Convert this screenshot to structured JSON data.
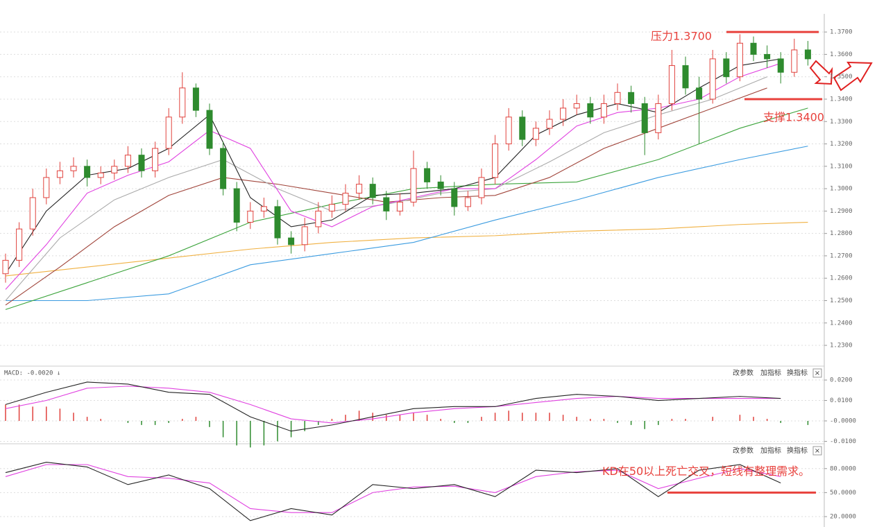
{
  "chart_data": [
    {
      "type": "candlestick",
      "up_color": "#e0413c",
      "down_color": "#2e8b2e",
      "open": [
        1.262,
        1.268,
        1.282,
        1.296,
        1.305,
        1.308,
        1.31,
        1.305,
        1.307,
        1.31,
        1.315,
        1.308,
        1.318,
        1.332,
        1.345,
        1.335,
        1.318,
        1.3,
        1.285,
        1.29,
        1.292,
        1.278,
        1.275,
        1.283,
        1.29,
        1.293,
        1.298,
        1.302,
        1.296,
        1.29,
        1.294,
        1.309,
        1.303,
        1.3,
        1.292,
        1.296,
        1.305,
        1.32,
        1.332,
        1.322,
        1.327,
        1.331,
        1.336,
        1.338,
        1.332,
        1.338,
        1.343,
        1.338,
        1.325,
        1.338,
        1.355,
        1.345,
        1.34,
        1.358,
        1.35,
        1.365,
        1.36,
        1.358,
        1.352,
        1.362
      ],
      "high": [
        1.271,
        1.285,
        1.3,
        1.309,
        1.312,
        1.314,
        1.313,
        1.31,
        1.313,
        1.319,
        1.318,
        1.321,
        1.336,
        1.352,
        1.347,
        1.338,
        1.321,
        1.303,
        1.294,
        1.296,
        1.295,
        1.281,
        1.287,
        1.294,
        1.297,
        1.302,
        1.306,
        1.305,
        1.299,
        1.298,
        1.317,
        1.312,
        1.306,
        1.303,
        1.299,
        1.309,
        1.324,
        1.336,
        1.335,
        1.33,
        1.335,
        1.34,
        1.342,
        1.341,
        1.342,
        1.347,
        1.346,
        1.341,
        1.342,
        1.362,
        1.359,
        1.35,
        1.362,
        1.361,
        1.369,
        1.368,
        1.364,
        1.361,
        1.367,
        1.366
      ],
      "low": [
        1.258,
        1.265,
        1.279,
        1.293,
        1.302,
        1.305,
        1.301,
        1.302,
        1.304,
        1.307,
        1.305,
        1.305,
        1.315,
        1.329,
        1.332,
        1.315,
        1.297,
        1.281,
        1.282,
        1.287,
        1.275,
        1.271,
        1.272,
        1.28,
        1.287,
        1.29,
        1.295,
        1.293,
        1.286,
        1.288,
        1.292,
        1.3,
        1.297,
        1.288,
        1.29,
        1.293,
        1.302,
        1.317,
        1.319,
        1.319,
        1.324,
        1.328,
        1.333,
        1.329,
        1.329,
        1.335,
        1.334,
        1.315,
        1.322,
        1.335,
        1.342,
        1.32,
        1.338,
        1.347,
        1.348,
        1.357,
        1.354,
        1.347,
        1.35,
        1.355
      ],
      "close": [
        1.268,
        1.282,
        1.296,
        1.305,
        1.308,
        1.31,
        1.305,
        1.307,
        1.31,
        1.315,
        1.308,
        1.318,
        1.332,
        1.345,
        1.335,
        1.318,
        1.3,
        1.285,
        1.29,
        1.292,
        1.278,
        1.275,
        1.283,
        1.29,
        1.293,
        1.298,
        1.302,
        1.296,
        1.29,
        1.294,
        1.309,
        1.303,
        1.3,
        1.292,
        1.296,
        1.305,
        1.32,
        1.332,
        1.322,
        1.327,
        1.331,
        1.336,
        1.338,
        1.332,
        1.338,
        1.343,
        1.338,
        1.325,
        1.338,
        1.355,
        1.345,
        1.34,
        1.358,
        1.35,
        1.365,
        1.36,
        1.358,
        1.352,
        1.362,
        1.358
      ],
      "lines": [
        {
          "color": "#f0b040",
          "x": [
            0,
            6,
            12,
            18,
            24,
            30,
            36,
            42,
            48,
            54,
            59
          ],
          "values": [
            1.261,
            1.265,
            1.269,
            1.273,
            1.276,
            1.278,
            1.279,
            1.281,
            1.282,
            1.284,
            1.285
          ]
        },
        {
          "color": "#3a9be0",
          "x": [
            0,
            6,
            12,
            18,
            24,
            30,
            36,
            42,
            48,
            54,
            59
          ],
          "values": [
            1.25,
            1.25,
            1.253,
            1.266,
            1.271,
            1.276,
            1.286,
            1.295,
            1.305,
            1.313,
            1.319
          ]
        },
        {
          "color": "#3aa33a",
          "x": [
            0,
            6,
            12,
            18,
            24,
            30,
            36,
            42,
            48,
            54,
            59
          ],
          "values": [
            1.246,
            1.258,
            1.27,
            1.285,
            1.293,
            1.3,
            1.302,
            1.303,
            1.313,
            1.327,
            1.336
          ]
        },
        {
          "color": "#a0443a",
          "x": [
            0,
            4,
            8,
            12,
            16,
            20,
            24,
            28,
            32,
            36,
            40,
            44,
            48,
            52,
            56
          ],
          "values": [
            1.248,
            1.265,
            1.283,
            1.297,
            1.305,
            1.302,
            1.298,
            1.294,
            1.296,
            1.297,
            1.305,
            1.318,
            1.327,
            1.336,
            1.345
          ]
        },
        {
          "color": "#aaaaaa",
          "x": [
            0,
            4,
            8,
            12,
            16,
            20,
            24,
            28,
            32,
            36,
            40,
            44,
            48,
            52,
            56
          ],
          "values": [
            1.25,
            1.278,
            1.295,
            1.305,
            1.313,
            1.3,
            1.29,
            1.293,
            1.298,
            1.3,
            1.312,
            1.325,
            1.333,
            1.34,
            1.35
          ]
        },
        {
          "color": "#e040e0",
          "x": [
            0,
            3,
            6,
            9,
            12,
            15,
            18,
            21,
            24,
            27,
            30,
            33,
            36,
            39,
            42,
            45,
            48,
            51,
            54,
            57
          ],
          "values": [
            1.255,
            1.275,
            1.298,
            1.306,
            1.312,
            1.326,
            1.318,
            1.29,
            1.283,
            1.292,
            1.296,
            1.3,
            1.3,
            1.313,
            1.328,
            1.334,
            1.336,
            1.34,
            1.35,
            1.356
          ]
        },
        {
          "color": "#222222",
          "x": [
            0,
            3,
            6,
            9,
            12,
            15,
            18,
            21,
            24,
            27,
            30,
            33,
            36,
            39,
            42,
            45,
            48,
            51,
            54,
            57
          ],
          "values": [
            1.262,
            1.29,
            1.306,
            1.309,
            1.318,
            1.333,
            1.296,
            1.283,
            1.286,
            1.297,
            1.298,
            1.3,
            1.305,
            1.324,
            1.333,
            1.338,
            1.334,
            1.345,
            1.355,
            1.358
          ]
        }
      ],
      "annotations": [
        {
          "text": "压力1.3700",
          "value": 1.37,
          "color": "#e8413c"
        },
        {
          "text": "支撑1.3400",
          "value": 1.34,
          "color": "#e8413c"
        }
      ],
      "ylim": [
        1.2232,
        1.375
      ],
      "yticks": [
        {
          "value": 1.37,
          "label": "1.3700"
        },
        {
          "value": 1.36,
          "label": "1.3600"
        },
        {
          "value": 1.35,
          "label": "1.3500"
        },
        {
          "value": 1.34,
          "label": "1.3400"
        },
        {
          "value": 1.33,
          "label": "1.3300"
        },
        {
          "value": 1.32,
          "label": "1.3200"
        },
        {
          "value": 1.31,
          "label": "1.3100"
        },
        {
          "value": 1.3,
          "label": "1.3000"
        },
        {
          "value": 1.29,
          "label": "1.2900"
        },
        {
          "value": 1.28,
          "label": "1.2800"
        },
        {
          "value": 1.27,
          "label": "1.2700"
        },
        {
          "value": 1.26,
          "label": "1.2600"
        },
        {
          "value": 1.25,
          "label": "1.2500"
        },
        {
          "value": 1.24,
          "label": "1.2400"
        },
        {
          "value": 1.23,
          "label": "1.2300"
        }
      ]
    },
    {
      "type": "macd",
      "header": "MACD: -0.0020 ↓",
      "buttons": [
        "改参数",
        "加指标",
        "换指标",
        "×"
      ],
      "up_color": "#e0413c",
      "down_color": "#2e8b2e",
      "histogram": [
        0.008,
        0.008,
        0.007,
        0.007,
        0.006,
        0.004,
        0.002,
        0.001,
        0.0,
        -0.001,
        -0.002,
        -0.002,
        -0.001,
        0.001,
        0.002,
        -0.003,
        -0.008,
        -0.012,
        -0.013,
        -0.012,
        -0.01,
        -0.008,
        -0.005,
        -0.002,
        0.001,
        0.003,
        0.005,
        0.004,
        0.003,
        0.003,
        0.004,
        0.003,
        0.001,
        -0.001,
        -0.001,
        0.002,
        0.004,
        0.005,
        0.004,
        0.004,
        0.004,
        0.003,
        0.002,
        0.001,
        0.001,
        -0.001,
        -0.002,
        -0.004,
        -0.002,
        0.001,
        0.001,
        0.0,
        0.002,
        0.0,
        0.003,
        0.002,
        0.001,
        -0.001,
        0.0,
        -0.002
      ],
      "lines": [
        {
          "color": "#e040e0",
          "x": [
            0,
            3,
            6,
            9,
            12,
            15,
            18,
            21,
            24,
            27,
            30,
            33,
            36,
            39,
            42,
            45,
            48,
            51,
            54,
            57
          ],
          "values": [
            0.006,
            0.01,
            0.016,
            0.017,
            0.016,
            0.014,
            0.008,
            0.001,
            -0.001,
            0.001,
            0.004,
            0.006,
            0.007,
            0.009,
            0.011,
            0.012,
            0.011,
            0.011,
            0.011,
            0.011
          ]
        },
        {
          "color": "#222222",
          "x": [
            0,
            3,
            6,
            9,
            12,
            15,
            18,
            21,
            24,
            27,
            30,
            33,
            36,
            39,
            42,
            45,
            48,
            51,
            54,
            57
          ],
          "values": [
            0.008,
            0.014,
            0.019,
            0.018,
            0.014,
            0.013,
            0.002,
            -0.005,
            -0.002,
            0.002,
            0.006,
            0.007,
            0.007,
            0.011,
            0.013,
            0.012,
            0.01,
            0.011,
            0.012,
            0.011
          ]
        }
      ],
      "ylim": [
        -0.0112,
        0.0268
      ],
      "yticks": [
        {
          "value": 0.02,
          "label": "0.0200"
        },
        {
          "value": 0.01,
          "label": "0.0100"
        },
        {
          "value": 0,
          "label": "-0.0000"
        },
        {
          "value": -0.01,
          "label": "-0.0100"
        }
      ]
    },
    {
      "type": "line",
      "buttons": [
        "改参数",
        "加指标",
        "换指标",
        "×"
      ],
      "lines": [
        {
          "color": "#e040e0",
          "x": [
            0,
            3,
            6,
            9,
            12,
            15,
            18,
            21,
            24,
            27,
            30,
            33,
            36,
            39,
            42,
            45,
            48,
            51,
            54,
            57
          ],
          "values": [
            70,
            85,
            85,
            70,
            68,
            62,
            30,
            25,
            25,
            50,
            57,
            58,
            50,
            70,
            76,
            78,
            55,
            68,
            80,
            70
          ]
        },
        {
          "color": "#222222",
          "x": [
            0,
            3,
            6,
            9,
            12,
            15,
            18,
            21,
            24,
            27,
            30,
            33,
            36,
            39,
            42,
            45,
            48,
            51,
            54,
            57
          ],
          "values": [
            75,
            88,
            82,
            60,
            72,
            55,
            15,
            30,
            22,
            60,
            55,
            60,
            45,
            78,
            75,
            80,
            45,
            78,
            85,
            62
          ]
        }
      ],
      "annotations": [
        {
          "text": "KD在50以上死亡交叉，短线有整理需求。",
          "value": 50,
          "color": "#e8413c"
        }
      ],
      "ylim": [
        7,
        111
      ],
      "yticks": [
        {
          "value": 80,
          "label": "80.0000"
        },
        {
          "value": 50,
          "label": "50.0000"
        },
        {
          "value": 20,
          "label": "20.0000"
        }
      ]
    }
  ]
}
